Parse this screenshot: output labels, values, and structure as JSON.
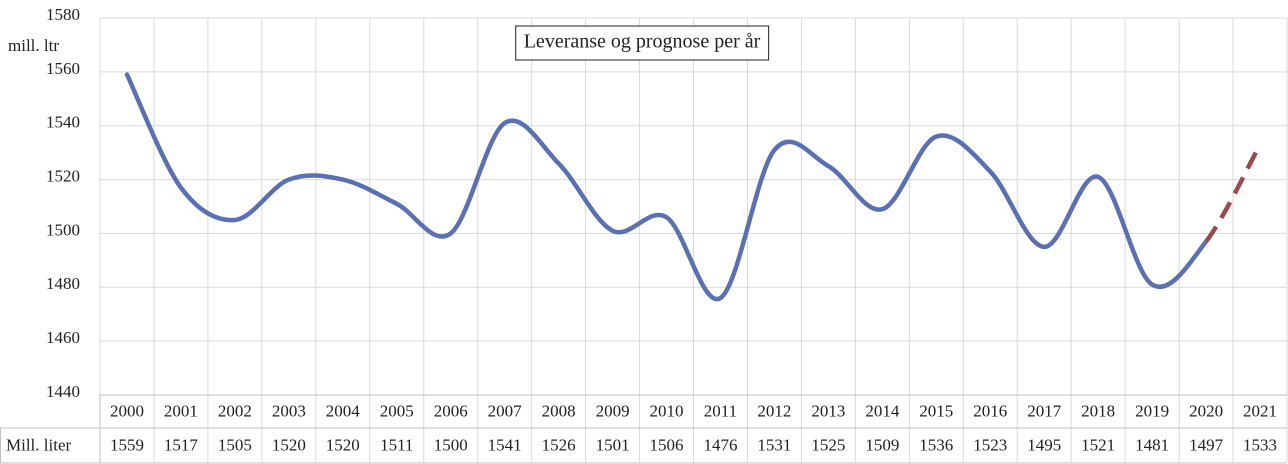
{
  "chart_data": {
    "type": "line",
    "title": "Leveranse og prognose per år",
    "y_label": "mill. ltr",
    "categories": [
      "2000",
      "2001",
      "2002",
      "2003",
      "2004",
      "2005",
      "2006",
      "2007",
      "2008",
      "2009",
      "2010",
      "2011",
      "2012",
      "2013",
      "2014",
      "2015",
      "2016",
      "2017",
      "2018",
      "2019",
      "2020",
      "2021"
    ],
    "series": [
      {
        "name": "Mill. liter",
        "color": "#5b70b3",
        "forecast_color": "#9a4a4c",
        "forecast_from_index": 20,
        "values": [
          1559,
          1517,
          1505,
          1520,
          1520,
          1511,
          1500,
          1541,
          1526,
          1501,
          1506,
          1476,
          1531,
          1525,
          1509,
          1536,
          1523,
          1495,
          1521,
          1481,
          1497,
          1533
        ]
      }
    ],
    "ylim": [
      1440,
      1580
    ],
    "yticks": [
      1440,
      1460,
      1480,
      1500,
      1520,
      1540,
      1560,
      1580
    ],
    "grid": true
  }
}
